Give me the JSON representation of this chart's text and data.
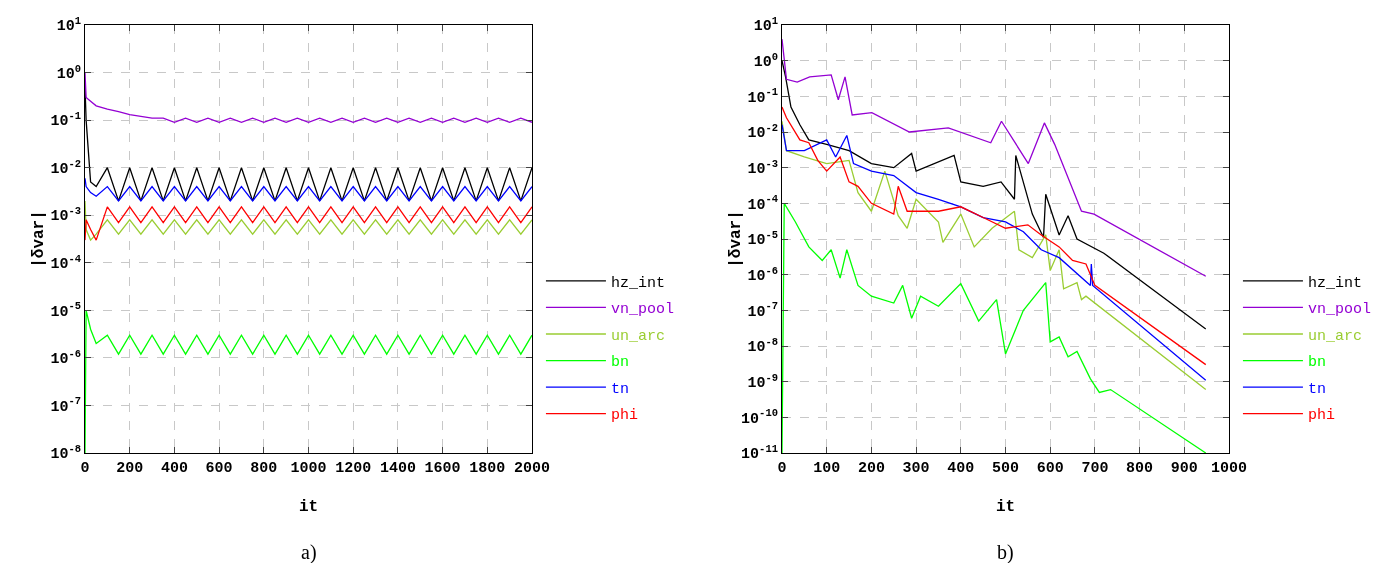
{
  "chart_data": [
    {
      "type": "line",
      "xlabel": "it",
      "ylabel": "|δvar|",
      "log": true,
      "grid": true,
      "legend": "right",
      "annotations": [
        "a)"
      ],
      "x": [
        0,
        5,
        25,
        50,
        100,
        150,
        200,
        250,
        300,
        350,
        400,
        450,
        500,
        550,
        600,
        650,
        700,
        750,
        800,
        850,
        900,
        950,
        1000,
        1050,
        1100,
        1150,
        1200,
        1250,
        1300,
        1350,
        1400,
        1450,
        1500,
        1550,
        1600,
        1650,
        1700,
        1750,
        1800,
        1850,
        1900,
        1950,
        2000
      ],
      "xlim": [
        0,
        2000
      ],
      "xticks": [
        0,
        200,
        400,
        600,
        800,
        1000,
        1200,
        1400,
        1600,
        1800,
        2000
      ],
      "ylim": [
        1e-08,
        10
      ],
      "yticks": [
        {
          "value": 1e-08,
          "label": "10$^{-8}$"
        },
        {
          "value": 1e-07,
          "label": "10$^{-7}$"
        },
        {
          "value": 1e-06,
          "label": "10$^{-6}$"
        },
        {
          "value": 1e-05,
          "label": "10$^{-5}$"
        },
        {
          "value": 0.0001,
          "label": "10$^{-4}$"
        },
        {
          "value": 0.001,
          "label": "10$^{-3}$"
        },
        {
          "value": 0.01,
          "label": "10$^{-2}$"
        },
        {
          "value": 0.1,
          "label": "10$^{-1}$"
        },
        {
          "value": 1,
          "label": "10$^{0}$"
        },
        {
          "value": 10,
          "label": "10$^{1}$"
        }
      ],
      "series": [
        {
          "name": "hz_int",
          "color": "#000000",
          "values": [
            0.5,
            0.1,
            0.005,
            0.004,
            0.01,
            0.002,
            0.01,
            0.002,
            0.01,
            0.002,
            0.01,
            0.002,
            0.01,
            0.002,
            0.01,
            0.002,
            0.01,
            0.002,
            0.01,
            0.002,
            0.01,
            0.002,
            0.01,
            0.002,
            0.01,
            0.002,
            0.01,
            0.002,
            0.01,
            0.002,
            0.01,
            0.002,
            0.01,
            0.002,
            0.01,
            0.002,
            0.01,
            0.002,
            0.01,
            0.002,
            0.01,
            0.002,
            0.01
          ]
        },
        {
          "name": "vn_pool",
          "color": "#9400d3",
          "values": [
            1,
            0.3,
            0.25,
            0.2,
            0.17,
            0.15,
            0.13,
            0.12,
            0.11,
            0.11,
            0.09,
            0.11,
            0.09,
            0.11,
            0.09,
            0.11,
            0.09,
            0.11,
            0.09,
            0.11,
            0.09,
            0.11,
            0.09,
            0.11,
            0.09,
            0.11,
            0.09,
            0.11,
            0.09,
            0.11,
            0.09,
            0.11,
            0.09,
            0.11,
            0.09,
            0.11,
            0.09,
            0.11,
            0.09,
            0.11,
            0.09,
            0.11,
            0.09
          ]
        },
        {
          "name": "un_arc",
          "color": "#9acd32",
          "values": [
            0.002,
            0.0005,
            0.0003,
            0.0004,
            0.0008,
            0.0004,
            0.0008,
            0.0004,
            0.0008,
            0.0004,
            0.0008,
            0.0004,
            0.0008,
            0.0004,
            0.0008,
            0.0004,
            0.0008,
            0.0004,
            0.0008,
            0.0004,
            0.0008,
            0.0004,
            0.0008,
            0.0004,
            0.0008,
            0.0004,
            0.0008,
            0.0004,
            0.0008,
            0.0004,
            0.0008,
            0.0004,
            0.0008,
            0.0004,
            0.0008,
            0.0004,
            0.0008,
            0.0004,
            0.0008,
            0.0004,
            0.0008,
            0.0004,
            0.0008
          ]
        },
        {
          "name": "bn",
          "color": "#00ff00",
          "values": [
            1e-08,
            1e-05,
            4e-06,
            2e-06,
            3e-06,
            1.2e-06,
            3e-06,
            1.2e-06,
            3e-06,
            1.2e-06,
            3e-06,
            1.2e-06,
            3e-06,
            1.2e-06,
            3e-06,
            1.2e-06,
            3e-06,
            1.2e-06,
            3e-06,
            1.2e-06,
            3e-06,
            1.2e-06,
            3e-06,
            1.2e-06,
            3e-06,
            1.2e-06,
            3e-06,
            1.2e-06,
            3e-06,
            1.2e-06,
            3e-06,
            1.2e-06,
            3e-06,
            1.2e-06,
            3e-06,
            1.2e-06,
            3e-06,
            1.2e-06,
            3e-06,
            1.2e-06,
            3e-06,
            1.2e-06,
            3e-06
          ]
        },
        {
          "name": "tn",
          "color": "#0000ff",
          "values": [
            0.006,
            0.004,
            0.003,
            0.0025,
            0.004,
            0.002,
            0.004,
            0.002,
            0.004,
            0.002,
            0.004,
            0.002,
            0.004,
            0.002,
            0.004,
            0.002,
            0.004,
            0.002,
            0.004,
            0.002,
            0.004,
            0.002,
            0.004,
            0.002,
            0.004,
            0.002,
            0.004,
            0.002,
            0.004,
            0.002,
            0.004,
            0.002,
            0.004,
            0.002,
            0.004,
            0.002,
            0.004,
            0.002,
            0.004,
            0.002,
            0.004,
            0.002,
            0.004
          ]
        },
        {
          "name": "phi",
          "color": "#ff0000",
          "values": [
            0.0003,
            0.0008,
            0.0005,
            0.0003,
            0.0015,
            0.0007,
            0.0015,
            0.0007,
            0.0015,
            0.0007,
            0.0015,
            0.0007,
            0.0015,
            0.0007,
            0.0015,
            0.0007,
            0.0015,
            0.0007,
            0.0015,
            0.0007,
            0.0015,
            0.0007,
            0.0015,
            0.0007,
            0.0015,
            0.0007,
            0.0015,
            0.0007,
            0.0015,
            0.0007,
            0.0015,
            0.0007,
            0.0015,
            0.0007,
            0.0015,
            0.0007,
            0.0015,
            0.0007,
            0.0015,
            0.0007,
            0.0015,
            0.0007,
            0.0015
          ]
        }
      ]
    },
    {
      "type": "line",
      "xlabel": "it",
      "ylabel": "|δvar|",
      "log": true,
      "grid": true,
      "legend": "right",
      "annotations": [
        "b)"
      ],
      "xlim": [
        0,
        1000
      ],
      "xticks": [
        0,
        100,
        200,
        300,
        400,
        500,
        600,
        700,
        800,
        900,
        1000
      ],
      "ylim": [
        1e-11,
        10
      ],
      "yticks": [
        {
          "value": 1e-11,
          "label": "10$^{-11}$"
        },
        {
          "value": 1e-10,
          "label": "10$^{-10}$"
        },
        {
          "value": 1e-09,
          "label": "10$^{-9}$"
        },
        {
          "value": 1e-08,
          "label": "10$^{-8}$"
        },
        {
          "value": 1e-07,
          "label": "10$^{-7}$"
        },
        {
          "value": 1e-06,
          "label": "10$^{-6}$"
        },
        {
          "value": 1e-05,
          "label": "10$^{-5}$"
        },
        {
          "value": 0.0001,
          "label": "10$^{-4}$"
        },
        {
          "value": 0.001,
          "label": "10$^{-3}$"
        },
        {
          "value": 0.01,
          "label": "10$^{-2}$"
        },
        {
          "value": 0.1,
          "label": "10$^{-1}$"
        },
        {
          "value": 1,
          "label": "10$^{0}$"
        },
        {
          "value": 10,
          "label": "10$^{1}$"
        }
      ],
      "series": [
        {
          "name": "hz_int",
          "color": "#000000",
          "x": [
            0,
            8,
            20,
            40,
            60,
            100,
            150,
            200,
            250,
            290,
            300,
            385,
            400,
            450,
            490,
            520,
            523,
            560,
            585,
            590,
            620,
            640,
            660,
            720,
            948
          ],
          "values": [
            1,
            0.35,
            0.05,
            0.016,
            0.006,
            0.0045,
            0.003,
            0.0013,
            0.001,
            0.0025,
            0.0008,
            0.0022,
            0.0004,
            0.0003,
            0.0004,
            0.00013,
            0.0022,
            5e-05,
            1.1e-05,
            0.00018,
            1.3e-05,
            4.5e-05,
            1e-05,
            4e-06,
            3e-08
          ]
        },
        {
          "name": "vn_pool",
          "color": "#9400d3",
          "x": [
            0,
            10,
            34,
            62,
            110,
            126,
            141,
            157,
            201,
            285,
            372,
            467,
            491,
            551,
            587,
            610,
            670,
            698,
            948
          ],
          "values": [
            4,
            0.3,
            0.25,
            0.35,
            0.4,
            0.08,
            0.35,
            0.03,
            0.035,
            0.01,
            0.013,
            0.005,
            0.02,
            0.0013,
            0.018,
            0.0045,
            6e-05,
            5e-05,
            9e-07
          ]
        },
        {
          "name": "un_arc",
          "color": "#9acd32",
          "x": [
            0,
            10,
            50,
            100,
            150,
            170,
            200,
            230,
            260,
            280,
            300,
            350,
            360,
            400,
            430,
            470,
            520,
            530,
            560,
            590,
            600,
            620,
            630,
            660,
            670,
            680,
            948
          ],
          "values": [
            0.02,
            0.003,
            0.002,
            0.0013,
            0.0016,
            0.0002,
            6e-05,
            0.0008,
            4.5e-05,
            2e-05,
            0.00013,
            3e-05,
            8e-06,
            5e-05,
            6e-06,
            2e-05,
            6e-05,
            5e-06,
            3e-06,
            1.3e-05,
            1.3e-06,
            5e-06,
            4e-07,
            6e-07,
            2e-07,
            2.5e-07,
            6e-10
          ]
        },
        {
          "name": "bn",
          "color": "#00ff00",
          "x": [
            0,
            5,
            30,
            60,
            90,
            110,
            130,
            145,
            170,
            200,
            250,
            270,
            290,
            310,
            350,
            400,
            440,
            480,
            500,
            540,
            590,
            600,
            620,
            640,
            660,
            690,
            710,
            735,
            948
          ],
          "values": [
            1e-11,
            0.0001,
            3e-05,
            6e-06,
            2.5e-06,
            5e-06,
            8e-07,
            5e-06,
            5e-07,
            2.5e-07,
            1.6e-07,
            5e-07,
            6e-08,
            2.5e-07,
            1.3e-07,
            5.6e-07,
            5e-08,
            2e-07,
            6e-09,
            1e-07,
            6e-07,
            1.3e-08,
            1.8e-08,
            5e-09,
            7e-09,
            1.2e-09,
            5e-10,
            6e-10,
            1e-11
          ]
        },
        {
          "name": "tn",
          "color": "#0000ff",
          "x": [
            0,
            10,
            50,
            100,
            120,
            145,
            160,
            200,
            250,
            300,
            350,
            400,
            450,
            500,
            540,
            580,
            620,
            690,
            692,
            695,
            948
          ],
          "values": [
            0.016,
            0.003,
            0.003,
            0.006,
            0.002,
            0.008,
            0.0013,
            0.0008,
            0.0006,
            0.0002,
            0.00013,
            8e-05,
            4e-05,
            3e-05,
            1.6e-05,
            5e-06,
            3e-06,
            5e-07,
            2e-06,
            5e-07,
            1.1e-09
          ]
        },
        {
          "name": "phi",
          "color": "#ff0000",
          "x": [
            0,
            10,
            40,
            60,
            80,
            100,
            130,
            150,
            170,
            200,
            250,
            260,
            280,
            350,
            400,
            450,
            500,
            550,
            580,
            620,
            650,
            680,
            700,
            948
          ],
          "values": [
            0.05,
            0.025,
            0.006,
            0.005,
            0.0016,
            0.0008,
            0.002,
            0.0004,
            0.0003,
            0.0001,
            5e-05,
            0.0003,
            6e-05,
            6e-05,
            8e-05,
            4e-05,
            2e-05,
            2.5e-05,
            1.3e-05,
            6e-06,
            2.5e-06,
            2e-06,
            5e-07,
            3e-09
          ]
        }
      ]
    }
  ]
}
